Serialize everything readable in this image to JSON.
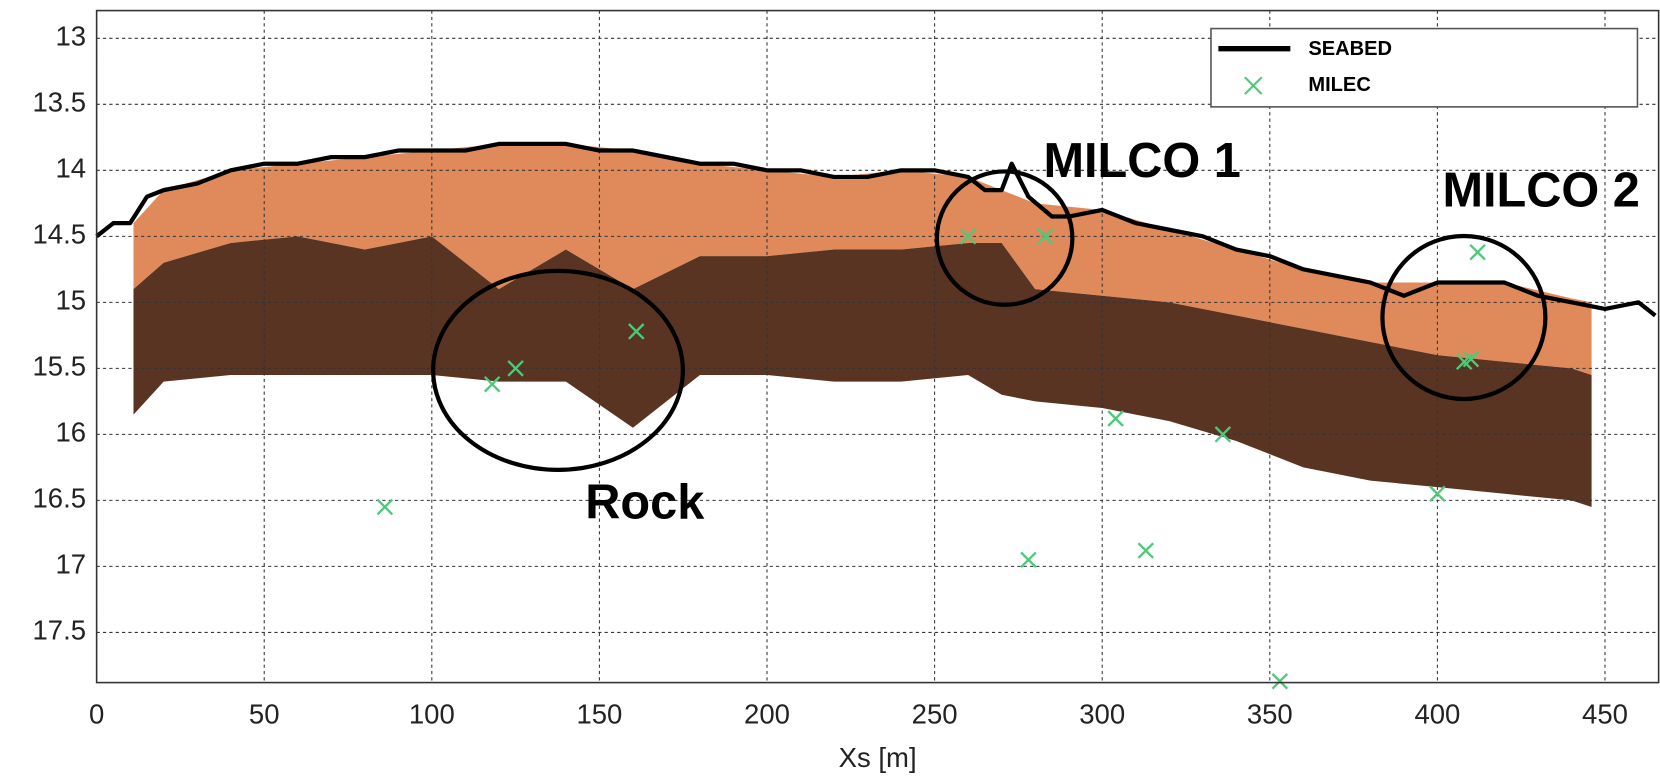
{
  "chart_data": {
    "type": "line",
    "x_label": "Xs [m]",
    "xlim": [
      0,
      466
    ],
    "ylim": [
      12.79,
      17.88
    ],
    "y_inverted": true,
    "xticks": [
      0,
      50,
      100,
      150,
      200,
      250,
      300,
      350,
      400,
      450
    ],
    "yticks": [
      13,
      13.5,
      14,
      14.5,
      15,
      15.5,
      16,
      16.5,
      17,
      17.5
    ],
    "grid": true,
    "legend": "upper right",
    "layers": [
      {
        "color": "#e08a5c",
        "x": [
          11,
          20,
          40,
          60,
          80,
          100,
          120,
          140,
          160,
          180,
          200,
          220,
          240,
          260,
          270,
          280,
          300,
          320,
          340,
          360,
          380,
          400,
          420,
          440,
          446
        ],
        "top": [
          14.4,
          14.15,
          14.0,
          13.95,
          13.9,
          13.85,
          13.8,
          13.8,
          13.85,
          13.95,
          14.0,
          14.05,
          14.0,
          14.05,
          14.15,
          14.25,
          14.3,
          14.45,
          14.6,
          14.75,
          14.85,
          14.85,
          14.85,
          14.97,
          15.0
        ],
        "bottom": [
          14.9,
          14.7,
          14.55,
          14.5,
          14.6,
          14.5,
          14.9,
          14.6,
          14.9,
          14.65,
          14.65,
          14.6,
          14.6,
          14.55,
          14.55,
          14.9,
          14.95,
          15.0,
          15.1,
          15.2,
          15.3,
          15.4,
          15.45,
          15.5,
          15.55
        ]
      },
      {
        "color": "#5a3422",
        "x": [
          11,
          20,
          40,
          60,
          80,
          100,
          120,
          140,
          160,
          180,
          200,
          220,
          240,
          260,
          270,
          280,
          300,
          320,
          340,
          360,
          380,
          400,
          420,
          440,
          446
        ],
        "top": [
          14.9,
          14.7,
          14.55,
          14.5,
          14.6,
          14.5,
          14.9,
          14.6,
          14.9,
          14.65,
          14.65,
          14.6,
          14.6,
          14.55,
          14.55,
          14.9,
          14.95,
          15.0,
          15.1,
          15.2,
          15.3,
          15.4,
          15.45,
          15.5,
          15.55
        ],
        "bottom": [
          15.85,
          15.6,
          15.55,
          15.55,
          15.55,
          15.55,
          15.6,
          15.6,
          15.95,
          15.55,
          15.55,
          15.6,
          15.6,
          15.55,
          15.7,
          15.75,
          15.8,
          15.9,
          16.05,
          16.25,
          16.35,
          16.4,
          16.45,
          16.5,
          16.55
        ]
      }
    ],
    "series": [
      {
        "name": "SEABED",
        "type": "line",
        "color": "#000000",
        "x": [
          0,
          5,
          10,
          15,
          20,
          30,
          40,
          50,
          60,
          70,
          80,
          90,
          100,
          110,
          120,
          130,
          140,
          150,
          160,
          170,
          180,
          190,
          200,
          210,
          220,
          230,
          240,
          250,
          260,
          265,
          270,
          273,
          278,
          285,
          290,
          300,
          310,
          320,
          330,
          340,
          350,
          360,
          370,
          380,
          390,
          400,
          410,
          420,
          430,
          440,
          450,
          460,
          465
        ],
        "values": [
          14.5,
          14.4,
          14.4,
          14.2,
          14.15,
          14.1,
          14.0,
          13.95,
          13.95,
          13.9,
          13.9,
          13.85,
          13.85,
          13.85,
          13.8,
          13.8,
          13.8,
          13.85,
          13.85,
          13.9,
          13.95,
          13.95,
          14.0,
          14.0,
          14.05,
          14.05,
          14.0,
          14.0,
          14.05,
          14.15,
          14.15,
          13.95,
          14.2,
          14.35,
          14.35,
          14.3,
          14.4,
          14.45,
          14.5,
          14.6,
          14.65,
          14.75,
          14.8,
          14.85,
          14.95,
          14.85,
          14.85,
          14.85,
          14.95,
          15.0,
          15.05,
          15.0,
          15.1
        ]
      },
      {
        "name": "MILEC",
        "type": "scatter",
        "color": "#4ec97a",
        "x": [
          86,
          118,
          125,
          161,
          260,
          283,
          278,
          304,
          313,
          336,
          353,
          400,
          408,
          410,
          412
        ],
        "values": [
          16.55,
          15.62,
          15.5,
          15.22,
          14.5,
          14.5,
          16.95,
          15.88,
          16.88,
          16.0,
          17.87,
          16.45,
          15.45,
          15.43,
          14.62
        ]
      }
    ],
    "annotations": [
      "MILCO 1",
      "MILCO 2",
      "Rock"
    ]
  }
}
